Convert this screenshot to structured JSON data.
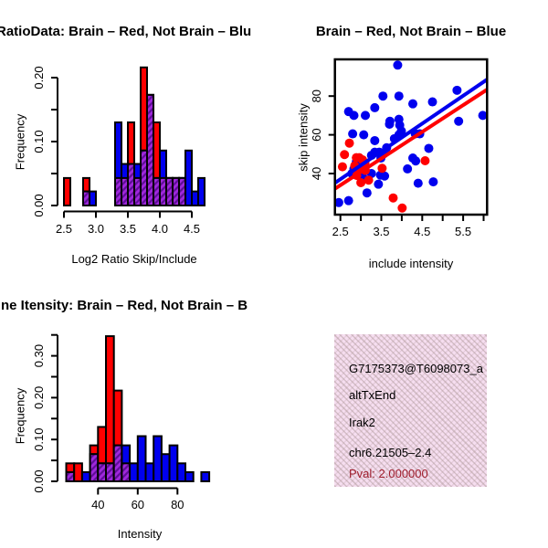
{
  "colors": {
    "red": "#FF0000",
    "blue": "#0000EE",
    "overlap": "#A028DC",
    "overlap_stripe": "#5E0D96",
    "axis": "#000000",
    "pval_text": "#A01E2E",
    "infobox_bg": "#F6DEF0"
  },
  "infobox": {
    "lines": [
      "G7175373@T6098073_a",
      "altTxEnd",
      "Irak2",
      "chr6.21505–2.4"
    ],
    "pval": "Pval: 2.000000"
  },
  "chart_data": [
    {
      "type": "bar",
      "subtype": "overlaid-histogram",
      "title": "RatioData: Brain – Red, Not Brain – Blu",
      "xlabel": "Log2 Ratio Skip/Include",
      "ylabel": "Frequency",
      "bin_width": 0.1,
      "xlim": [
        2.5,
        4.7
      ],
      "ylim": [
        0,
        0.22
      ],
      "series": [
        {
          "name": "Brain",
          "color": "#FF0000"
        },
        {
          "name": "Not Brain",
          "color": "#0000EE"
        },
        {
          "name": "Overlap",
          "color": "#A028DC"
        }
      ],
      "bins": [
        {
          "x": 2.5,
          "r": 0.043,
          "b": 0,
          "o": 0
        },
        {
          "x": 2.8,
          "r": 0.043,
          "b": 0.022,
          "o": 0.022
        },
        {
          "x": 2.9,
          "r": 0,
          "b": 0.022,
          "o": 0
        },
        {
          "x": 3.3,
          "r": 0.043,
          "b": 0.13,
          "o": 0.043
        },
        {
          "x": 3.4,
          "r": 0.043,
          "b": 0.065,
          "o": 0.043
        },
        {
          "x": 3.5,
          "r": 0.13,
          "b": 0.065,
          "o": 0.065
        },
        {
          "x": 3.6,
          "r": 0.043,
          "b": 0.065,
          "o": 0.043
        },
        {
          "x": 3.7,
          "r": 0.216,
          "b": 0.086,
          "o": 0.086
        },
        {
          "x": 3.8,
          "r": 0.173,
          "b": 0.173,
          "o": 0.173
        },
        {
          "x": 3.9,
          "r": 0.13,
          "b": 0.043,
          "o": 0.043
        },
        {
          "x": 4.0,
          "r": 0.043,
          "b": 0.086,
          "o": 0.043
        },
        {
          "x": 4.1,
          "r": 0.043,
          "b": 0.043,
          "o": 0.043
        },
        {
          "x": 4.2,
          "r": 0.043,
          "b": 0.043,
          "o": 0.043
        },
        {
          "x": 4.3,
          "r": 0.043,
          "b": 0.043,
          "o": 0.043
        },
        {
          "x": 4.4,
          "r": 0,
          "b": 0.086,
          "o": 0
        },
        {
          "x": 4.5,
          "r": 0,
          "b": 0.022,
          "o": 0
        },
        {
          "x": 4.6,
          "r": 0,
          "b": 0.043,
          "o": 0
        }
      ],
      "x_ticks": [
        {
          "v": 2.5,
          "l": "2.5"
        },
        {
          "v": 3.0,
          "l": "3.0"
        },
        {
          "v": 3.5,
          "l": "3.5"
        },
        {
          "v": 4.0,
          "l": "4.0"
        },
        {
          "v": 4.5,
          "l": "4.5"
        }
      ],
      "y_ticks": [
        {
          "v": 0,
          "l": "0.00"
        },
        {
          "v": 0.05,
          "l": ""
        },
        {
          "v": 0.1,
          "l": "0.10"
        },
        {
          "v": 0.15,
          "l": ""
        },
        {
          "v": 0.2,
          "l": "0.20"
        }
      ]
    },
    {
      "type": "scatter",
      "title": "Brain – Red, Not Brain – Blue",
      "xlabel": "include intensity",
      "ylabel": "skip intensity",
      "xlim": [
        2.37,
        6.08
      ],
      "ylim": [
        18.8,
        99.1
      ],
      "x_ticks": [
        {
          "v": 2.5,
          "l": "2.5"
        },
        {
          "v": 3.0,
          "l": ""
        },
        {
          "v": 3.5,
          "l": "3.5"
        },
        {
          "v": 4.0,
          "l": ""
        },
        {
          "v": 4.5,
          "l": "4.5"
        },
        {
          "v": 5.0,
          "l": ""
        },
        {
          "v": 5.5,
          "l": "5.5"
        },
        {
          "v": 6.0,
          "l": ""
        }
      ],
      "y_ticks": [
        {
          "v": 40,
          "l": "40"
        },
        {
          "v": 60,
          "l": "60"
        },
        {
          "v": 80,
          "l": "80"
        }
      ],
      "series": [
        {
          "key": "not-brain",
          "name": "Not Brain",
          "color": "#0000EE",
          "points": [
            [
              2.46,
              25
            ],
            [
              2.7,
              26
            ],
            [
              3.15,
              30
            ],
            [
              3.43,
              34.5
            ],
            [
              4.4,
              35
            ],
            [
              4.77,
              35.7
            ],
            [
              2.78,
              40
            ],
            [
              3.04,
              38.7
            ],
            [
              3.26,
              40
            ],
            [
              3.48,
              39.2
            ],
            [
              3.58,
              38.7
            ],
            [
              2.83,
              42.4
            ],
            [
              4.14,
              42.4
            ],
            [
              2.96,
              44
            ],
            [
              2.89,
              46
            ],
            [
              4.34,
              46.5
            ],
            [
              3.49,
              48
            ],
            [
              4.27,
              48
            ],
            [
              3.26,
              49.4
            ],
            [
              3.56,
              50.2
            ],
            [
              3.34,
              51
            ],
            [
              3.45,
              51
            ],
            [
              4.66,
              53
            ],
            [
              3.63,
              53.3
            ],
            [
              3.34,
              57
            ],
            [
              3.82,
              58
            ],
            [
              2.8,
              60.5
            ],
            [
              3.07,
              60
            ],
            [
              3.93,
              60
            ],
            [
              4.33,
              60.5
            ],
            [
              4.44,
              60.5
            ],
            [
              3.99,
              62
            ],
            [
              3.95,
              65
            ],
            [
              3.7,
              65.5
            ],
            [
              3.71,
              67
            ],
            [
              5.39,
              67
            ],
            [
              3.93,
              68
            ],
            [
              2.83,
              70
            ],
            [
              3.11,
              70
            ],
            [
              5.98,
              70
            ],
            [
              2.7,
              72
            ],
            [
              3.34,
              74
            ],
            [
              4.27,
              76
            ],
            [
              4.75,
              77
            ],
            [
              3.54,
              80
            ],
            [
              3.93,
              80
            ],
            [
              5.35,
              83
            ],
            [
              3.9,
              96
            ]
          ]
        },
        {
          "key": "brain",
          "name": "Brain",
          "color": "#FF0000",
          "points": [
            [
              4.01,
              22.2
            ],
            [
              3.79,
              27.4
            ],
            [
              3.0,
              35.3
            ],
            [
              3.19,
              36.6
            ],
            [
              2.9,
              39
            ],
            [
              3.11,
              41.6
            ],
            [
              2.96,
              42.4
            ],
            [
              3.52,
              42.7
            ],
            [
              2.55,
              43.5
            ],
            [
              2.85,
              44
            ],
            [
              3.1,
              45.5
            ],
            [
              4.57,
              46.6
            ],
            [
              3.04,
              47.1
            ],
            [
              2.89,
              48.2
            ],
            [
              2.96,
              48.2
            ],
            [
              2.6,
              49.8
            ],
            [
              2.72,
              55.7
            ]
          ]
        }
      ],
      "lines": [
        {
          "key": "red",
          "color": "#FF0000",
          "x1": 2.37,
          "y1": 32.2,
          "x2": 6.08,
          "y2": 83.3
        },
        {
          "key": "blue",
          "color": "#0000EE",
          "x1": 2.37,
          "y1": 35.2,
          "x2": 6.08,
          "y2": 88.5
        }
      ]
    },
    {
      "type": "bar",
      "subtype": "overlaid-histogram",
      "title": "ne Itensity: Brain – Red, Not Brain – B",
      "xlabel": "Intensity",
      "ylabel": "Frequency",
      "bin_width": 4,
      "xlim": [
        24,
        96
      ],
      "ylim": [
        0,
        0.35
      ],
      "series": [
        {
          "name": "Brain",
          "color": "#FF0000"
        },
        {
          "name": "Not Brain",
          "color": "#0000EE"
        },
        {
          "name": "Overlap",
          "color": "#A028DC"
        }
      ],
      "bins": [
        {
          "x": 24,
          "r": 0.043,
          "b": 0.022,
          "o": 0.022
        },
        {
          "x": 28,
          "r": 0.043,
          "b": 0,
          "o": 0
        },
        {
          "x": 32,
          "r": 0,
          "b": 0.022,
          "o": 0
        },
        {
          "x": 36,
          "r": 0.086,
          "b": 0.065,
          "o": 0.065
        },
        {
          "x": 40,
          "r": 0.13,
          "b": 0.043,
          "o": 0.043
        },
        {
          "x": 44,
          "r": 0.347,
          "b": 0.043,
          "o": 0.043
        },
        {
          "x": 48,
          "r": 0.217,
          "b": 0.086,
          "o": 0.086
        },
        {
          "x": 52,
          "r": 0.043,
          "b": 0.086,
          "o": 0.043
        },
        {
          "x": 56,
          "r": 0,
          "b": 0.043,
          "o": 0
        },
        {
          "x": 60,
          "r": 0,
          "b": 0.108,
          "o": 0
        },
        {
          "x": 64,
          "r": 0,
          "b": 0.043,
          "o": 0
        },
        {
          "x": 68,
          "r": 0,
          "b": 0.108,
          "o": 0
        },
        {
          "x": 72,
          "r": 0,
          "b": 0.065,
          "o": 0
        },
        {
          "x": 76,
          "r": 0,
          "b": 0.086,
          "o": 0
        },
        {
          "x": 80,
          "r": 0,
          "b": 0.043,
          "o": 0
        },
        {
          "x": 84,
          "r": 0,
          "b": 0.022,
          "o": 0
        },
        {
          "x": 92,
          "r": 0,
          "b": 0.022,
          "o": 0
        }
      ],
      "x_ticks": [
        {
          "v": 40,
          "l": "40"
        },
        {
          "v": 60,
          "l": "60"
        },
        {
          "v": 80,
          "l": "80"
        }
      ],
      "y_ticks": [
        {
          "v": 0,
          "l": "0.00"
        },
        {
          "v": 0.05,
          "l": ""
        },
        {
          "v": 0.1,
          "l": "0.10"
        },
        {
          "v": 0.15,
          "l": ""
        },
        {
          "v": 0.2,
          "l": "0.20"
        },
        {
          "v": 0.25,
          "l": ""
        },
        {
          "v": 0.3,
          "l": "0.30"
        },
        {
          "v": 0.35,
          "l": ""
        }
      ]
    }
  ]
}
